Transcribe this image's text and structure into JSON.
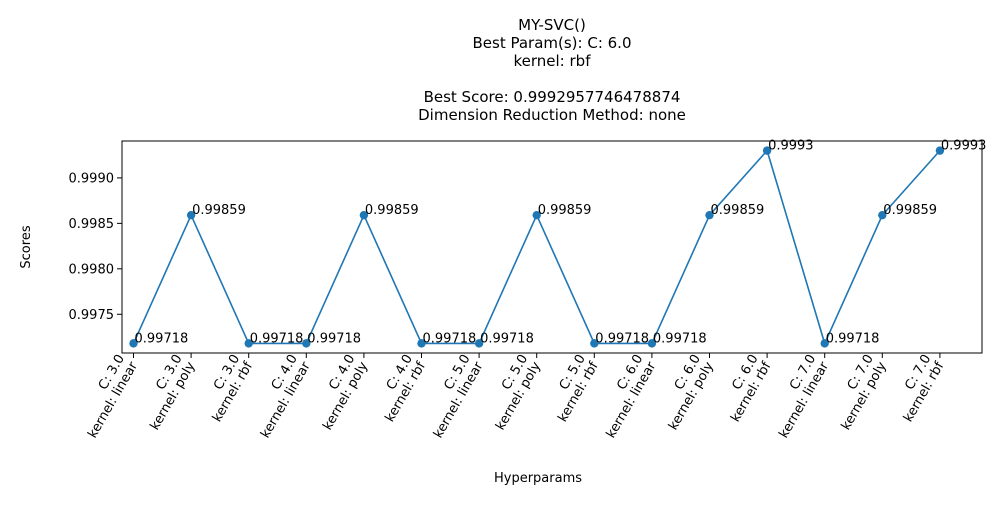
{
  "chart_data": {
    "type": "line",
    "title_lines": [
      "MY-SVC()",
      "Best Param(s): C: 6.0",
      "kernel: rbf",
      "",
      "Best Score: 0.9992957746478874",
      "Dimension Reduction Method: none"
    ],
    "xlabel": "Hyperparams",
    "ylabel": "Scores",
    "categories": [
      [
        "C: 3.0",
        "kernel: linear"
      ],
      [
        "C: 3.0",
        "kernel: poly"
      ],
      [
        "C: 3.0",
        "kernel: rbf"
      ],
      [
        "C: 4.0",
        "kernel: linear"
      ],
      [
        "C: 4.0",
        "kernel: poly"
      ],
      [
        "C: 4.0",
        "kernel: rbf"
      ],
      [
        "C: 5.0",
        "kernel: linear"
      ],
      [
        "C: 5.0",
        "kernel: poly"
      ],
      [
        "C: 5.0",
        "kernel: rbf"
      ],
      [
        "C: 6.0",
        "kernel: linear"
      ],
      [
        "C: 6.0",
        "kernel: poly"
      ],
      [
        "C: 6.0",
        "kernel: rbf"
      ],
      [
        "C: 7.0",
        "kernel: linear"
      ],
      [
        "C: 7.0",
        "kernel: poly"
      ],
      [
        "C: 7.0",
        "kernel: rbf"
      ]
    ],
    "values": [
      0.99718,
      0.99859,
      0.99718,
      0.99718,
      0.99859,
      0.99718,
      0.99718,
      0.99859,
      0.99718,
      0.99718,
      0.99859,
      0.9993,
      0.99718,
      0.99859,
      0.9993
    ],
    "data_labels": [
      "0.99718",
      "0.99859",
      "0.99718",
      "0.99718",
      "0.99859",
      "0.99718",
      "0.99718",
      "0.99859",
      "0.99718",
      "0.99718",
      "0.99859",
      "0.9993",
      "0.99718",
      "0.99859",
      "0.9993"
    ],
    "yticks": [
      0.9975,
      0.998,
      0.9985,
      0.999
    ],
    "ytick_labels": [
      "0.9975",
      "0.9980",
      "0.9985",
      "0.9990"
    ],
    "ylim": [
      0.997074,
      0.999406
    ],
    "grid": false,
    "legend": "none",
    "colors": {
      "line": "#1f77b4",
      "marker": "#1f77b4",
      "axes": "#000000"
    }
  }
}
